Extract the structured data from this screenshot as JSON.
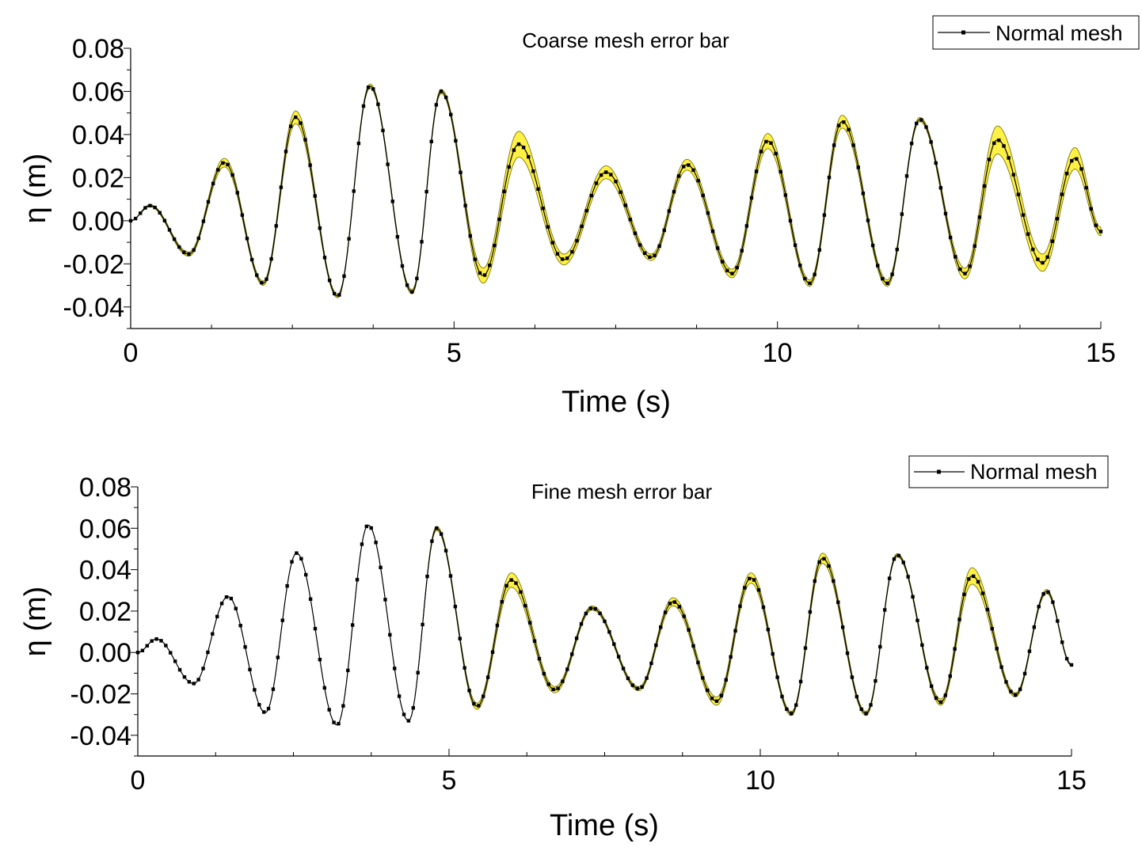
{
  "colors": {
    "band_fill": "#fff046",
    "band_edge": "#6b6b00",
    "line": "#000000",
    "axis": "#000000",
    "background": "#ffffff"
  },
  "chart_data": [
    {
      "type": "line",
      "title": "Coarse mesh error bar",
      "xlabel": "Time (s)",
      "ylabel": "η (m)",
      "xlim": [
        0,
        15
      ],
      "ylim": [
        -0.05,
        0.08
      ],
      "xticks": [
        0,
        5,
        10,
        15
      ],
      "yticks": [
        -0.04,
        -0.02,
        0.0,
        0.02,
        0.04,
        0.06,
        0.08
      ],
      "ytick_labels": [
        "-0.04",
        "-0.02",
        "0.00",
        "0.02",
        "0.04",
        "0.06",
        "0.08"
      ],
      "legend": {
        "label": "Normal mesh",
        "position": "top-right"
      },
      "series": [
        {
          "name": "Normal mesh",
          "key_points": [
            [
              0,
              0.0
            ],
            [
              0.3,
              0.007
            ],
            [
              0.9,
              -0.0155
            ],
            [
              1.45,
              0.027
            ],
            [
              2.05,
              -0.029
            ],
            [
              2.55,
              0.048
            ],
            [
              3.2,
              -0.035
            ],
            [
              3.7,
              0.0625
            ],
            [
              4.35,
              -0.033
            ],
            [
              4.8,
              0.06
            ],
            [
              5.45,
              -0.0255
            ],
            [
              6.0,
              0.0355
            ],
            [
              6.7,
              -0.018
            ],
            [
              7.35,
              0.0225
            ],
            [
              8.05,
              -0.017
            ],
            [
              8.6,
              0.026
            ],
            [
              9.3,
              -0.0245
            ],
            [
              9.85,
              0.037
            ],
            [
              10.5,
              -0.029
            ],
            [
              11.0,
              0.046
            ],
            [
              11.7,
              -0.029
            ],
            [
              12.2,
              0.047
            ],
            [
              12.9,
              -0.0245
            ],
            [
              13.4,
              0.0375
            ],
            [
              14.1,
              -0.0195
            ],
            [
              14.6,
              0.029
            ],
            [
              15.0,
              -0.005
            ]
          ],
          "error_half_width": [
            0,
            0.0005,
            0.001,
            0.002,
            0.001,
            0.003,
            0.0008,
            0.001,
            0.001,
            0.001,
            0.0035,
            0.006,
            0.0025,
            0.003,
            0.0015,
            0.0025,
            0.002,
            0.0035,
            0.0015,
            0.003,
            0.0015,
            0.001,
            0.0025,
            0.0065,
            0.004,
            0.005,
            0.002
          ]
        }
      ]
    },
    {
      "type": "line",
      "title": "Fine mesh error bar",
      "xlabel": "Time (s)",
      "ylabel": "η (m)",
      "xlim": [
        0,
        15
      ],
      "ylim": [
        -0.05,
        0.08
      ],
      "xticks": [
        0,
        5,
        10,
        15
      ],
      "yticks": [
        -0.04,
        -0.02,
        0.0,
        0.02,
        0.04,
        0.06,
        0.08
      ],
      "ytick_labels": [
        "-0.04",
        "-0.02",
        "0.00",
        "0.02",
        "0.04",
        "0.06",
        "0.08"
      ],
      "legend": {
        "label": "Normal mesh",
        "position": "top-right"
      },
      "series": [
        {
          "name": "Normal mesh",
          "key_points": [
            [
              0,
              0.0
            ],
            [
              0.3,
              0.0065
            ],
            [
              0.9,
              -0.015
            ],
            [
              1.45,
              0.027
            ],
            [
              2.05,
              -0.029
            ],
            [
              2.55,
              0.048
            ],
            [
              3.2,
              -0.035
            ],
            [
              3.7,
              0.0615
            ],
            [
              4.35,
              -0.033
            ],
            [
              4.8,
              0.06
            ],
            [
              5.45,
              -0.026
            ],
            [
              6.0,
              0.035
            ],
            [
              6.7,
              -0.018
            ],
            [
              7.3,
              0.0215
            ],
            [
              8.05,
              -0.0175
            ],
            [
              8.6,
              0.0245
            ],
            [
              9.3,
              -0.0235
            ],
            [
              9.85,
              0.036
            ],
            [
              10.5,
              -0.0295
            ],
            [
              11.0,
              0.0455
            ],
            [
              11.7,
              -0.0295
            ],
            [
              12.2,
              0.047
            ],
            [
              12.9,
              -0.024
            ],
            [
              13.4,
              0.037
            ],
            [
              14.1,
              -0.0205
            ],
            [
              14.6,
              0.0295
            ],
            [
              15.0,
              -0.006
            ]
          ],
          "error_half_width": [
            0,
            0,
            0,
            0,
            0,
            0,
            0,
            0,
            0,
            0.001,
            0.0015,
            0.0035,
            0.0015,
            0.001,
            0.001,
            0.002,
            0.002,
            0.0025,
            0.001,
            0.0025,
            0.001,
            0.0008,
            0.0015,
            0.004,
            0.001,
            0.001,
            0.0005
          ]
        }
      ]
    }
  ]
}
